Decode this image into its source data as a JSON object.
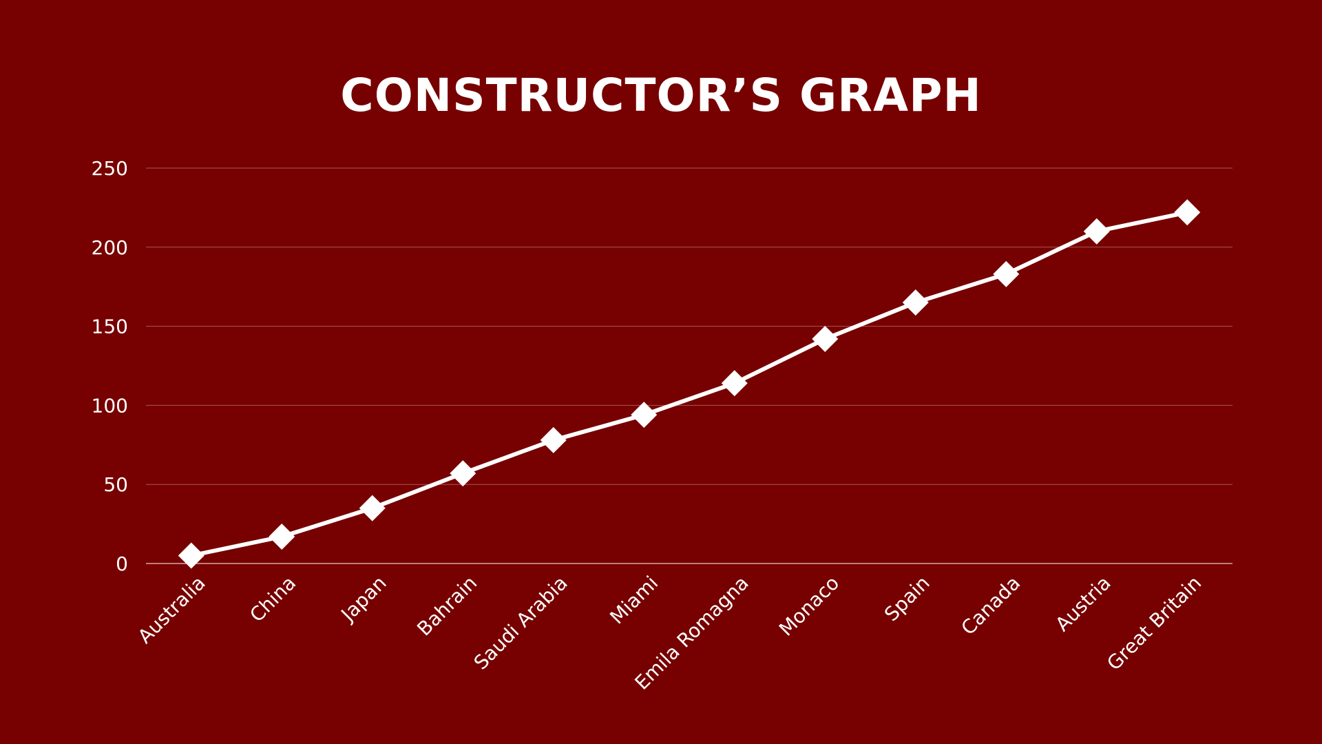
{
  "title": "CONSTRUCTOR’S GRAPH",
  "colors": {
    "background": "#770000",
    "line": "#ffffff",
    "grid": "#a85a5a",
    "text": "#ffffff"
  },
  "chart_data": {
    "type": "line",
    "title": "CONSTRUCTOR’S GRAPH",
    "xlabel": "",
    "ylabel": "",
    "categories": [
      "Australia",
      "China",
      "Japan",
      "Bahrain",
      "Saudi Arabia",
      "Miami",
      "Emila Romagna",
      "Monaco",
      "Spain",
      "Canada",
      "Austria",
      "Great Britain"
    ],
    "series": [
      {
        "values": [
          5,
          17,
          35,
          57,
          78,
          94,
          114,
          142,
          165,
          183,
          210,
          222
        ],
        "marker": "diamond"
      }
    ],
    "ylim": [
      0,
      250
    ],
    "yticks": [
      0,
      50,
      100,
      150,
      200,
      250
    ],
    "grid": true,
    "legend": "none"
  }
}
